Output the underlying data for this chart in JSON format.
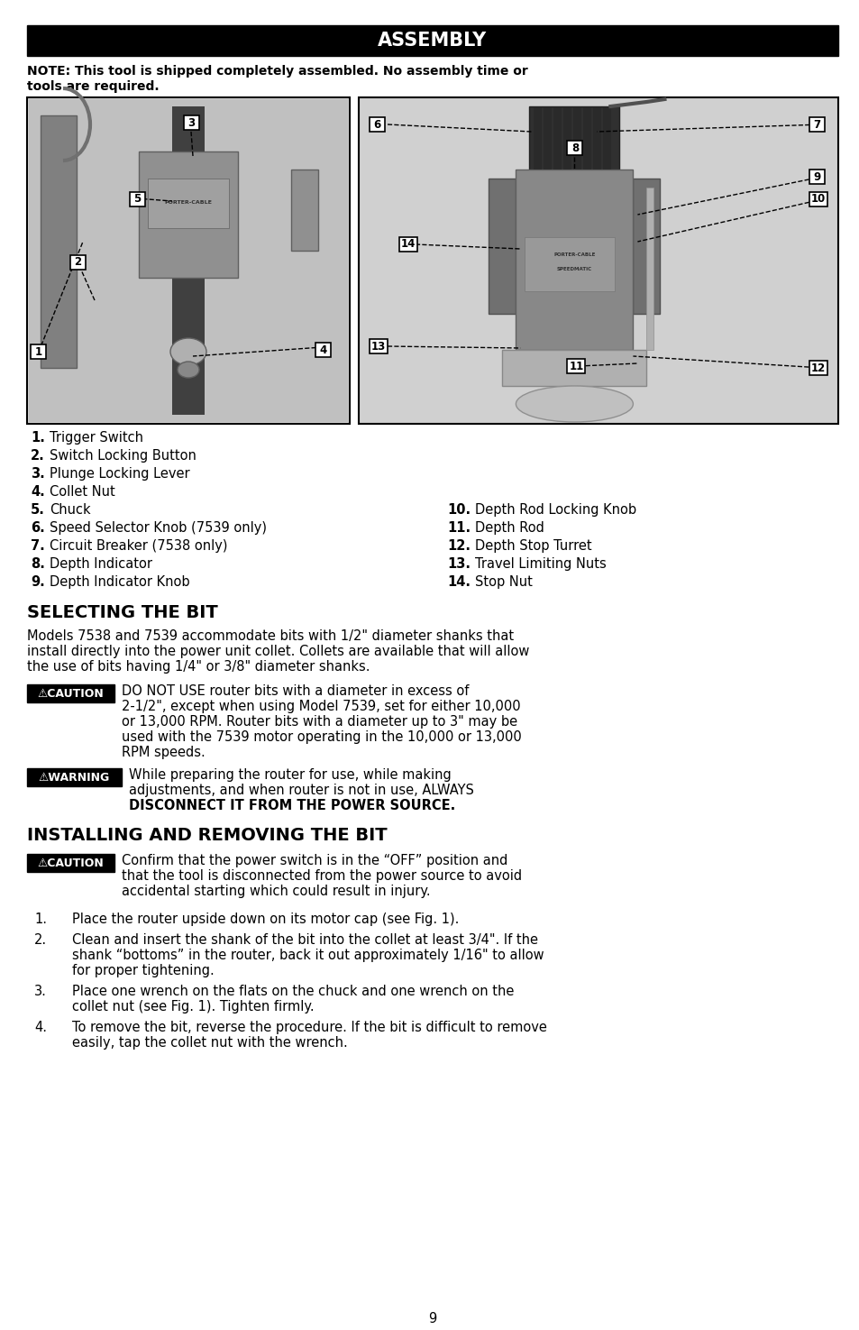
{
  "title": "ASSEMBLY",
  "note_text_bold": "NOTE: This tool is shipped completely assembled. No assembly time or",
  "note_text_bold2": "tools are required.",
  "left_labels": [
    [
      "1.",
      "Trigger Switch"
    ],
    [
      "2.",
      "Switch Locking Button"
    ],
    [
      "3.",
      "Plunge Locking Lever"
    ],
    [
      "4.",
      "Collet Nut"
    ],
    [
      "5.",
      "Chuck"
    ],
    [
      "6.",
      "Speed Selector Knob (7539 only)"
    ],
    [
      "7.",
      "Circuit Breaker (7538 only)"
    ],
    [
      "8.",
      "Depth Indicator"
    ],
    [
      "9.",
      "Depth Indicator Knob"
    ]
  ],
  "right_labels": [
    [
      "10.",
      "Depth Rod Locking Knob"
    ],
    [
      "11.",
      "Depth Rod"
    ],
    [
      "12.",
      "Depth Stop Turret"
    ],
    [
      "13.",
      "Travel Limiting Nuts"
    ],
    [
      "14.",
      "Stop Nut"
    ]
  ],
  "section2_title": "SELECTING THE BIT",
  "section2_body_lines": [
    "Models 7538 and 7539 accommodate bits with 1/2\" diameter shanks that",
    "install directly into the power unit collet. Collets are available that will allow",
    "the use of bits having 1/4\" or 3/8\" diameter shanks."
  ],
  "caution1_label": "⚠CAUTION",
  "caution1_lines": [
    "DO NOT USE router bits with a diameter in excess of",
    "2-1/2\", except when using Model 7539, set for either 10,000",
    "or 13,000 RPM. Router bits with a diameter up to 3\" may be",
    "used with the 7539 motor operating in the 10,000 or 13,000",
    "RPM speeds."
  ],
  "warning1_label": "⚠WARNING",
  "warning1_lines": [
    "While preparing the router for use, while making",
    "adjustments, and when router is not in use, ALWAYS",
    "DISCONNECT IT FROM THE POWER SOURCE."
  ],
  "section3_title": "INSTALLING AND REMOVING THE BIT",
  "caution2_label": "⚠CAUTION",
  "caution2_lines": [
    "Confirm that the power switch is in the “OFF” position and",
    "that the tool is disconnected from the power source to avoid",
    "accidental starting which could result in injury."
  ],
  "steps": [
    [
      "Place the router upside down on its motor cap (see Fig. 1)."
    ],
    [
      "Clean and insert the shank of the bit into the collet at least 3/4\". If the",
      "shank “bottoms” in the router, back it out approximately 1/16\" to allow",
      "for proper tightening."
    ],
    [
      "Place one wrench on the flats on the chuck and one wrench on the",
      "collet nut (see Fig. 1). Tighten firmly."
    ],
    [
      "To remove the bit, reverse the procedure. If the bit is difficult to remove",
      "easily, tap the collet nut with the wrench."
    ]
  ],
  "page_number": "9",
  "bg_color": "#ffffff",
  "title_bg": "#000000",
  "title_fg": "#ffffff",
  "badge_bg": "#000000",
  "badge_fg": "#ffffff"
}
